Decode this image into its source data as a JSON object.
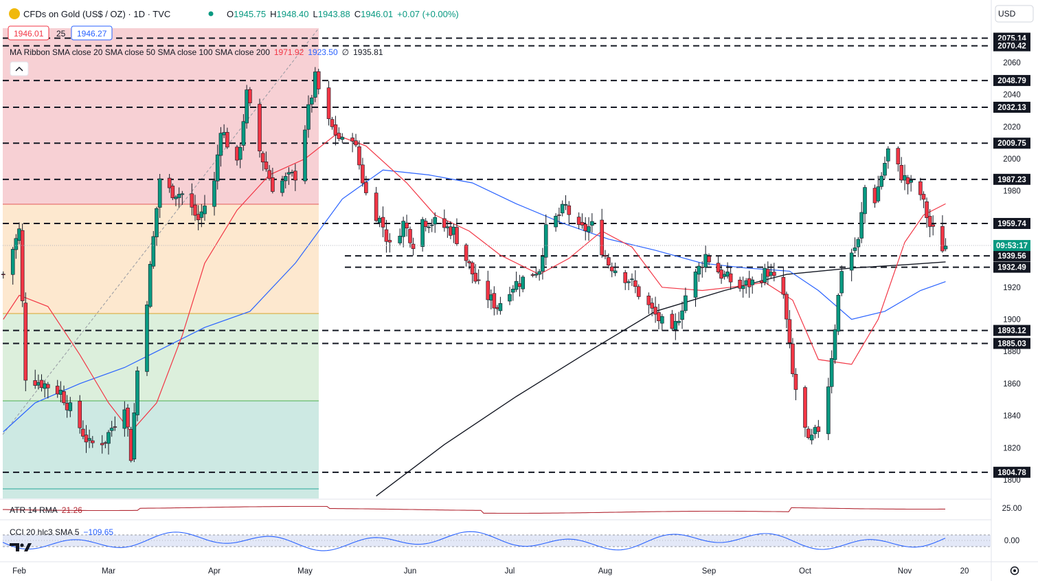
{
  "header": {
    "title": "CFDs on Gold (US$ / OZ) · 1D · TVC",
    "open_label": "O",
    "open": "1945.75",
    "high_label": "H",
    "high": "1948.40",
    "low_label": "L",
    "low": "1943.88",
    "close_label": "C",
    "close": "1946.01",
    "change": "+0.07 (+0.00%)",
    "bid": "1946.01",
    "spread": "25",
    "ask": "1946.27",
    "currency": "USD",
    "status_color": "#089981"
  },
  "indicators": {
    "ma_ribbon": {
      "label": "MA Ribbon SMA close 20 SMA close 50 SMA close 100 SMA close 200",
      "v20": "1971.92",
      "v50": "1923.50",
      "v200_symbol": "∅",
      "v200": "1935.81"
    },
    "atr": {
      "label": "ATR 14 RMA",
      "value": "21.26",
      "axis_tick": "25.00"
    },
    "cci": {
      "label": "CCI 20 hlc3 SMA 5",
      "value": "−109.65",
      "axis_tick": "0.00"
    }
  },
  "colors": {
    "up": "#089981",
    "down": "#f23645",
    "sma20": "#f23645",
    "sma50": "#2962ff",
    "sma200": "#131722",
    "atr": "#b22833",
    "cci": "#2962ff"
  },
  "current_time_label": "09:53:17",
  "chart_data": {
    "type": "candlestick",
    "symbol": "XAUUSD",
    "timeframe": "1D",
    "y_ticks": [
      1800,
      1820,
      1840,
      1860,
      1880,
      1900,
      1920,
      1940,
      1960,
      1980,
      2000,
      2020,
      2040,
      2060
    ],
    "x_ticks": [
      {
        "label": "Feb",
        "date": "2023-02-01"
      },
      {
        "label": "Mar",
        "date": "2023-03-01"
      },
      {
        "label": "Apr",
        "date": "2023-04-03"
      },
      {
        "label": "May",
        "date": "2023-05-01"
      },
      {
        "label": "Jun",
        "date": "2023-06-01"
      },
      {
        "label": "Jul",
        "date": "2023-07-03"
      },
      {
        "label": "Aug",
        "date": "2023-08-01"
      },
      {
        "label": "Sep",
        "date": "2023-09-01"
      },
      {
        "label": "Oct",
        "date": "2023-10-02"
      },
      {
        "label": "Nov",
        "date": "2023-11-01"
      },
      {
        "label": "20",
        "date": "2023-11-20"
      }
    ],
    "horizontal_levels": [
      2075.14,
      2070.42,
      2048.79,
      2032.13,
      2009.75,
      1987.23,
      1959.74,
      1939.56,
      1932.49,
      1893.12,
      1885.03,
      1804.78
    ],
    "price_points": [
      {
        "date": "2023-01-27",
        "close": 1928
      },
      {
        "date": "2023-02-01",
        "close": 1955
      },
      {
        "date": "2023-02-03",
        "close": 1865
      },
      {
        "date": "2023-02-14",
        "close": 1855
      },
      {
        "date": "2023-02-23",
        "close": 1822
      },
      {
        "date": "2023-02-28",
        "close": 1825
      },
      {
        "date": "2023-03-06",
        "close": 1848
      },
      {
        "date": "2023-03-08",
        "close": 1815
      },
      {
        "date": "2023-03-10",
        "close": 1868
      },
      {
        "date": "2023-03-13",
        "close": 1913
      },
      {
        "date": "2023-03-17",
        "close": 1988
      },
      {
        "date": "2023-03-20",
        "close": 1980
      },
      {
        "date": "2023-03-24",
        "close": 1978
      },
      {
        "date": "2023-03-29",
        "close": 1962
      },
      {
        "date": "2023-04-03",
        "close": 1985
      },
      {
        "date": "2023-04-05",
        "close": 2020
      },
      {
        "date": "2023-04-10",
        "close": 1995
      },
      {
        "date": "2023-04-13",
        "close": 2040
      },
      {
        "date": "2023-04-17",
        "close": 2005
      },
      {
        "date": "2023-04-21",
        "close": 1983
      },
      {
        "date": "2023-04-28",
        "close": 1990
      },
      {
        "date": "2023-05-03",
        "close": 2040
      },
      {
        "date": "2023-05-04",
        "close": 2050
      },
      {
        "date": "2023-05-08",
        "close": 2022
      },
      {
        "date": "2023-05-12",
        "close": 2010
      },
      {
        "date": "2023-05-15",
        "close": 2015
      },
      {
        "date": "2023-05-19",
        "close": 1978
      },
      {
        "date": "2023-05-24",
        "close": 1958
      },
      {
        "date": "2023-05-26",
        "close": 1945
      },
      {
        "date": "2023-05-30",
        "close": 1960
      },
      {
        "date": "2023-06-02",
        "close": 1948
      },
      {
        "date": "2023-06-05",
        "close": 1962
      },
      {
        "date": "2023-06-09",
        "close": 1960
      },
      {
        "date": "2023-06-15",
        "close": 1955
      },
      {
        "date": "2023-06-23",
        "close": 1920
      },
      {
        "date": "2023-06-29",
        "close": 1908
      },
      {
        "date": "2023-07-03",
        "close": 1920
      },
      {
        "date": "2023-07-07",
        "close": 1925
      },
      {
        "date": "2023-07-12",
        "close": 1932
      },
      {
        "date": "2023-07-14",
        "close": 1955
      },
      {
        "date": "2023-07-20",
        "close": 1970
      },
      {
        "date": "2023-07-24",
        "close": 1955
      },
      {
        "date": "2023-07-28",
        "close": 1958
      },
      {
        "date": "2023-08-02",
        "close": 1935
      },
      {
        "date": "2023-08-08",
        "close": 1925
      },
      {
        "date": "2023-08-15",
        "close": 1905
      },
      {
        "date": "2023-08-21",
        "close": 1890
      },
      {
        "date": "2023-08-25",
        "close": 1915
      },
      {
        "date": "2023-08-31",
        "close": 1940
      },
      {
        "date": "2023-09-05",
        "close": 1928
      },
      {
        "date": "2023-09-11",
        "close": 1920
      },
      {
        "date": "2023-09-15",
        "close": 1923
      },
      {
        "date": "2023-09-20",
        "close": 1930
      },
      {
        "date": "2023-09-25",
        "close": 1915
      },
      {
        "date": "2023-09-28",
        "close": 1865
      },
      {
        "date": "2023-10-03",
        "close": 1822
      },
      {
        "date": "2023-10-06",
        "close": 1832
      },
      {
        "date": "2023-10-09",
        "close": 1860
      },
      {
        "date": "2023-10-13",
        "close": 1932
      },
      {
        "date": "2023-10-18",
        "close": 1948
      },
      {
        "date": "2023-10-20",
        "close": 1982
      },
      {
        "date": "2023-10-23",
        "close": 1975
      },
      {
        "date": "2023-10-27",
        "close": 2005
      },
      {
        "date": "2023-10-31",
        "close": 1990
      },
      {
        "date": "2023-11-02",
        "close": 1985
      },
      {
        "date": "2023-11-06",
        "close": 1978
      },
      {
        "date": "2023-11-09",
        "close": 1958
      },
      {
        "date": "2023-11-13",
        "close": 1945
      },
      {
        "date": "2023-11-14",
        "close": 1946
      }
    ],
    "sma20_points": [
      {
        "date": "2023-01-27",
        "value": 1900
      },
      {
        "date": "2023-02-01",
        "value": 1915
      },
      {
        "date": "2023-02-10",
        "value": 1908
      },
      {
        "date": "2023-02-20",
        "value": 1878
      },
      {
        "date": "2023-03-01",
        "value": 1848
      },
      {
        "date": "2023-03-08",
        "value": 1830
      },
      {
        "date": "2023-03-16",
        "value": 1848
      },
      {
        "date": "2023-03-24",
        "value": 1890
      },
      {
        "date": "2023-03-31",
        "value": 1935
      },
      {
        "date": "2023-04-10",
        "value": 1968
      },
      {
        "date": "2023-04-20",
        "value": 1990
      },
      {
        "date": "2023-05-01",
        "value": 2000
      },
      {
        "date": "2023-05-10",
        "value": 2015
      },
      {
        "date": "2023-05-19",
        "value": 2008
      },
      {
        "date": "2023-05-31",
        "value": 1985
      },
      {
        "date": "2023-06-09",
        "value": 1965
      },
      {
        "date": "2023-06-20",
        "value": 1955
      },
      {
        "date": "2023-06-30",
        "value": 1940
      },
      {
        "date": "2023-07-12",
        "value": 1928
      },
      {
        "date": "2023-07-21",
        "value": 1938
      },
      {
        "date": "2023-07-31",
        "value": 1955
      },
      {
        "date": "2023-08-09",
        "value": 1945
      },
      {
        "date": "2023-08-18",
        "value": 1920
      },
      {
        "date": "2023-08-30",
        "value": 1918
      },
      {
        "date": "2023-09-08",
        "value": 1920
      },
      {
        "date": "2023-09-19",
        "value": 1923
      },
      {
        "date": "2023-09-28",
        "value": 1912
      },
      {
        "date": "2023-10-06",
        "value": 1875
      },
      {
        "date": "2023-10-16",
        "value": 1872
      },
      {
        "date": "2023-10-24",
        "value": 1900
      },
      {
        "date": "2023-11-01",
        "value": 1948
      },
      {
        "date": "2023-11-07",
        "value": 1965
      },
      {
        "date": "2023-11-14",
        "value": 1972
      }
    ],
    "sma50_points": [
      {
        "date": "2023-01-27",
        "value": 1830
      },
      {
        "date": "2023-02-06",
        "value": 1848
      },
      {
        "date": "2023-02-20",
        "value": 1860
      },
      {
        "date": "2023-03-06",
        "value": 1870
      },
      {
        "date": "2023-03-16",
        "value": 1880
      },
      {
        "date": "2023-03-31",
        "value": 1895
      },
      {
        "date": "2023-04-14",
        "value": 1905
      },
      {
        "date": "2023-04-28",
        "value": 1935
      },
      {
        "date": "2023-05-12",
        "value": 1975
      },
      {
        "date": "2023-05-24",
        "value": 1993
      },
      {
        "date": "2023-06-07",
        "value": 1990
      },
      {
        "date": "2023-06-21",
        "value": 1985
      },
      {
        "date": "2023-07-05",
        "value": 1972
      },
      {
        "date": "2023-07-19",
        "value": 1960
      },
      {
        "date": "2023-08-02",
        "value": 1950
      },
      {
        "date": "2023-08-16",
        "value": 1943
      },
      {
        "date": "2023-08-30",
        "value": 1935
      },
      {
        "date": "2023-09-13",
        "value": 1932
      },
      {
        "date": "2023-09-27",
        "value": 1930
      },
      {
        "date": "2023-10-06",
        "value": 1918
      },
      {
        "date": "2023-10-16",
        "value": 1900
      },
      {
        "date": "2023-10-26",
        "value": 1905
      },
      {
        "date": "2023-11-06",
        "value": 1918
      },
      {
        "date": "2023-11-14",
        "value": 1923.5
      }
    ],
    "sma200_points": [
      {
        "date": "2023-05-22",
        "value": 1790
      },
      {
        "date": "2023-06-12",
        "value": 1822
      },
      {
        "date": "2023-07-05",
        "value": 1852
      },
      {
        "date": "2023-07-27",
        "value": 1880
      },
      {
        "date": "2023-08-16",
        "value": 1905
      },
      {
        "date": "2023-09-06",
        "value": 1918
      },
      {
        "date": "2023-09-26",
        "value": 1928
      },
      {
        "date": "2023-10-16",
        "value": 1932
      },
      {
        "date": "2023-11-01",
        "value": 1934
      },
      {
        "date": "2023-11-14",
        "value": 1935.81
      }
    ]
  }
}
